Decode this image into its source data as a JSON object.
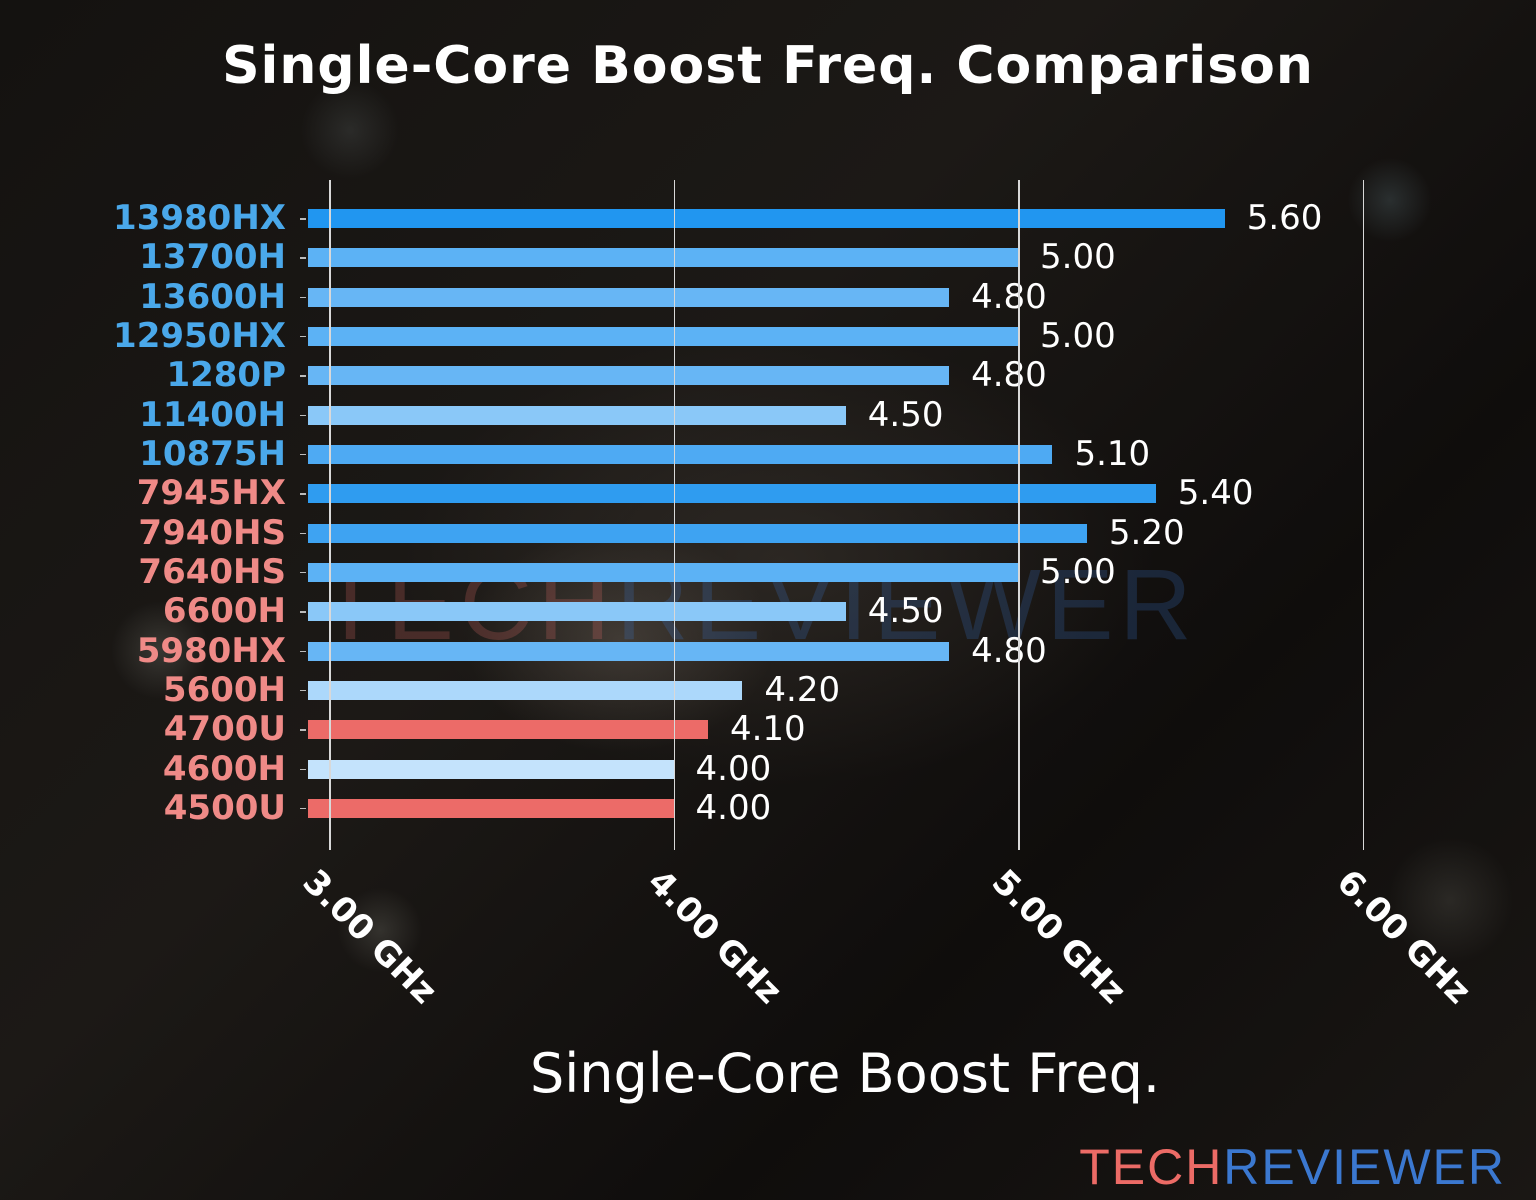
{
  "chart_data": {
    "type": "bar",
    "orientation": "horizontal",
    "title": "Single-Core Boost Freq. Comparison",
    "xlabel": "Single-Core Boost Freq.",
    "ylabel": "",
    "xlim": [
      2.94,
      6.0
    ],
    "x_ticks": [
      "3.00 GHz",
      "4.00 GHz",
      "5.00 GHz",
      "6.00 GHz"
    ],
    "x_tick_values": [
      3.0,
      4.0,
      5.0,
      6.0
    ],
    "grid": "vertical",
    "legend": null,
    "categories": [
      "13980HX",
      "13700H",
      "13600H",
      "12950HX",
      "1280P",
      "11400H",
      "10875H",
      "7945HX",
      "7940HS",
      "7640HS",
      "6600H",
      "5980HX",
      "5600H",
      "4700U",
      "4600H",
      "4500U"
    ],
    "values": [
      5.6,
      5.0,
      4.8,
      5.0,
      4.8,
      4.5,
      5.1,
      5.4,
      5.2,
      5.0,
      4.5,
      4.8,
      4.2,
      4.1,
      4.0,
      4.0
    ],
    "value_labels": [
      "5.60",
      "5.00",
      "4.80",
      "5.00",
      "4.80",
      "4.50",
      "5.10",
      "5.40",
      "5.20",
      "5.00",
      "4.50",
      "4.80",
      "4.20",
      "4.10",
      "4.00",
      "4.00"
    ],
    "label_colors": [
      "#4aa8ea",
      "#4aa8ea",
      "#4aa8ea",
      "#4aa8ea",
      "#4aa8ea",
      "#4aa8ea",
      "#4aa8ea",
      "#ef8a87",
      "#ef8a87",
      "#ef8a87",
      "#ef8a87",
      "#ef8a87",
      "#ef8a87",
      "#ef8a87",
      "#ef8a87",
      "#ef8a87"
    ],
    "bar_colors": [
      "#2196f0",
      "#5cb2f5",
      "#67b6f5",
      "#5cb2f5",
      "#67b6f5",
      "#8ac8f8",
      "#4eaaf3",
      "#2f9cf0",
      "#3ea3f2",
      "#5cb2f5",
      "#8ac8f8",
      "#67b6f5",
      "#acd8fb",
      "#ec6b68",
      "#c4e3fc",
      "#ec6b68"
    ]
  },
  "watermark": {
    "part1": "TECH",
    "part2": "REVIEWER"
  },
  "logo": {
    "part1": "TECH",
    "part2": "REVIEWER"
  }
}
